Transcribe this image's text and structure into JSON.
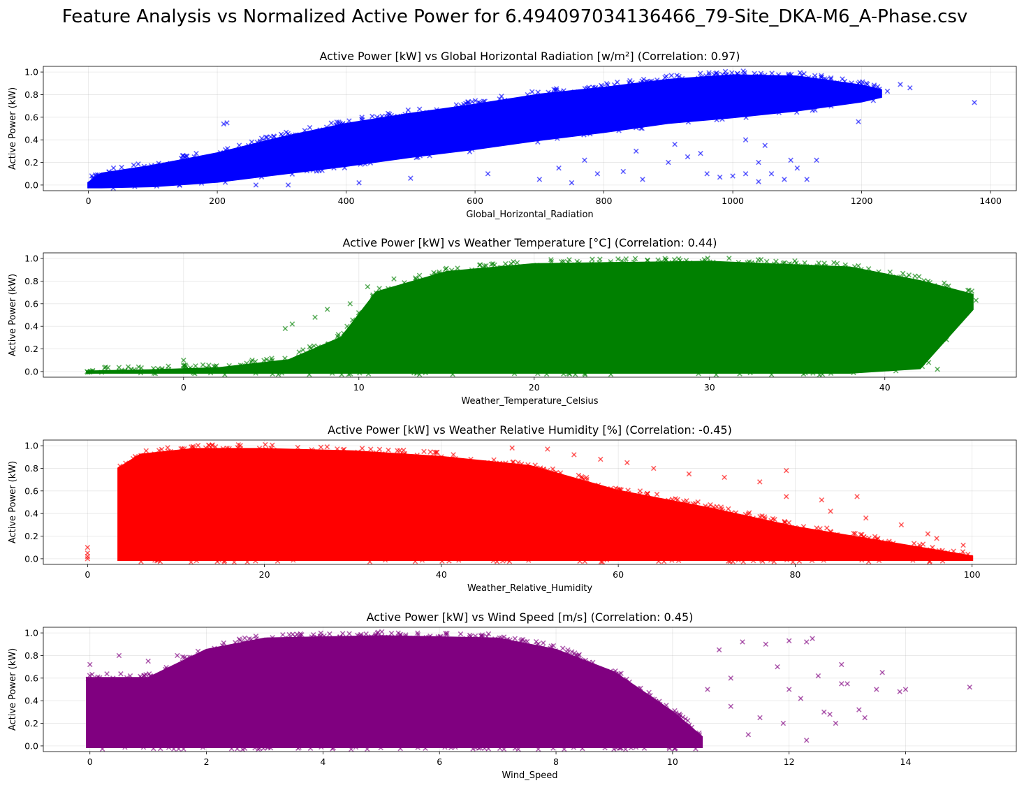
{
  "figure_title": "Feature Analysis vs Normalized Active Power for 6.494097034136466_79-Site_DKA-M6_A-Phase.csv",
  "chart_data": [
    {
      "type": "scatter",
      "title": "Active Power [kW] vs Global Horizontal Radiation [w/m²] (Correlation: 0.97)",
      "xlabel": "Global_Horizontal_Radiation",
      "ylabel": "Active Power (kW)",
      "color": "#0000ff",
      "marker": "x",
      "alpha": 0.6,
      "grid": true,
      "xlim": [
        -70,
        1440
      ],
      "ylim": [
        -0.05,
        1.05
      ],
      "xticks": [
        0,
        200,
        400,
        600,
        800,
        1000,
        1200,
        1400
      ],
      "yticks": [
        0.0,
        0.2,
        0.4,
        0.6,
        0.8,
        1.0
      ],
      "xtick_labels": [
        "0",
        "200",
        "400",
        "600",
        "800",
        "1000",
        "1200",
        "1400"
      ],
      "ytick_labels": [
        "0.0",
        "0.2",
        "0.4",
        "0.6",
        "0.8",
        "1.0"
      ],
      "density_band": [
        {
          "x": 0,
          "lo": -0.02,
          "hi": 0.02
        },
        {
          "x": 20,
          "lo": -0.02,
          "hi": 0.1
        },
        {
          "x": 100,
          "lo": -0.01,
          "hi": 0.17
        },
        {
          "x": 200,
          "lo": 0.03,
          "hi": 0.28
        },
        {
          "x": 300,
          "lo": 0.1,
          "hi": 0.42
        },
        {
          "x": 400,
          "lo": 0.17,
          "hi": 0.54
        },
        {
          "x": 500,
          "lo": 0.25,
          "hi": 0.63
        },
        {
          "x": 600,
          "lo": 0.32,
          "hi": 0.71
        },
        {
          "x": 700,
          "lo": 0.4,
          "hi": 0.8
        },
        {
          "x": 800,
          "lo": 0.47,
          "hi": 0.86
        },
        {
          "x": 900,
          "lo": 0.55,
          "hi": 0.93
        },
        {
          "x": 1000,
          "lo": 0.6,
          "hi": 0.97
        },
        {
          "x": 1100,
          "lo": 0.66,
          "hi": 0.96
        },
        {
          "x": 1200,
          "lo": 0.74,
          "hi": 0.88
        },
        {
          "x": 1230,
          "lo": 0.78,
          "hi": 0.84
        }
      ],
      "points": [
        [
          210,
          0.54
        ],
        [
          215,
          0.55
        ],
        [
          1375,
          0.73
        ],
        [
          1275,
          0.86
        ],
        [
          1260,
          0.89
        ],
        [
          1240,
          0.83
        ],
        [
          1195,
          0.56
        ],
        [
          620,
          0.1
        ],
        [
          700,
          0.05
        ],
        [
          750,
          0.02
        ],
        [
          790,
          0.1
        ],
        [
          830,
          0.12
        ],
        [
          860,
          0.05
        ],
        [
          900,
          0.2
        ],
        [
          930,
          0.25
        ],
        [
          960,
          0.1
        ],
        [
          980,
          0.07
        ],
        [
          1000,
          0.08
        ],
        [
          1020,
          0.1
        ],
        [
          1040,
          0.2
        ],
        [
          1060,
          0.1
        ],
        [
          1080,
          0.05
        ],
        [
          1100,
          0.15
        ],
        [
          1115,
          0.05
        ],
        [
          1040,
          0.03
        ],
        [
          1090,
          0.22
        ],
        [
          500,
          0.06
        ],
        [
          420,
          0.02
        ],
        [
          310,
          0.0
        ],
        [
          260,
          0.0
        ],
        [
          730,
          0.15
        ],
        [
          770,
          0.22
        ],
        [
          850,
          0.3
        ],
        [
          910,
          0.36
        ],
        [
          950,
          0.28
        ],
        [
          1020,
          0.4
        ],
        [
          1050,
          0.35
        ],
        [
          1130,
          0.22
        ]
      ]
    },
    {
      "type": "scatter",
      "title": "Active Power [kW] vs Weather Temperature [°C] (Correlation: 0.44)",
      "xlabel": "Weather_Temperature_Celsius",
      "ylabel": "Active Power (kW)",
      "color": "#008000",
      "marker": "x",
      "alpha": 0.6,
      "grid": true,
      "xlim": [
        -8,
        47.5
      ],
      "ylim": [
        -0.05,
        1.05
      ],
      "xticks": [
        0,
        10,
        20,
        30,
        40
      ],
      "yticks": [
        0.0,
        0.2,
        0.4,
        0.6,
        0.8,
        1.0
      ],
      "xtick_labels": [
        "0",
        "10",
        "20",
        "30",
        "40"
      ],
      "ytick_labels": [
        "0.0",
        "0.2",
        "0.4",
        "0.6",
        "0.8",
        "1.0"
      ],
      "density_band": [
        {
          "x": -5.5,
          "lo": -0.01,
          "hi": 0.0
        },
        {
          "x": -2,
          "lo": -0.01,
          "hi": 0.01
        },
        {
          "x": 2,
          "lo": -0.01,
          "hi": 0.03
        },
        {
          "x": 6,
          "lo": -0.01,
          "hi": 0.1
        },
        {
          "x": 9,
          "lo": -0.01,
          "hi": 0.3
        },
        {
          "x": 11,
          "lo": -0.01,
          "hi": 0.7
        },
        {
          "x": 15,
          "lo": -0.01,
          "hi": 0.88
        },
        {
          "x": 20,
          "lo": -0.01,
          "hi": 0.95
        },
        {
          "x": 30,
          "lo": -0.01,
          "hi": 0.97
        },
        {
          "x": 38,
          "lo": -0.01,
          "hi": 0.92
        },
        {
          "x": 42,
          "lo": 0.03,
          "hi": 0.8
        },
        {
          "x": 45,
          "lo": 0.55,
          "hi": 0.68
        }
      ],
      "points": [
        [
          -5.5,
          0.0
        ],
        [
          -5.2,
          0.0
        ],
        [
          0,
          0.1
        ],
        [
          0,
          0.05
        ],
        [
          5.8,
          0.38
        ],
        [
          6.2,
          0.42
        ],
        [
          7.5,
          0.48
        ],
        [
          8.2,
          0.55
        ],
        [
          9.5,
          0.6
        ],
        [
          10.5,
          0.75
        ],
        [
          12,
          0.82
        ],
        [
          44.5,
          0.55
        ],
        [
          45.2,
          0.63
        ],
        [
          44.8,
          0.72
        ],
        [
          43.8,
          0.46
        ],
        [
          42.5,
          0.08
        ],
        [
          43,
          0.02
        ],
        [
          42,
          0.12
        ],
        [
          22,
          0.99
        ],
        [
          28,
          0.99
        ]
      ]
    },
    {
      "type": "scatter",
      "title": "Active Power [kW] vs Weather Relative Humidity [%] (Correlation: -0.45)",
      "xlabel": "Weather_Relative_Humidity",
      "ylabel": "Active Power (kW)",
      "color": "#ff0000",
      "marker": "x",
      "alpha": 0.6,
      "grid": true,
      "xlim": [
        -5,
        105
      ],
      "ylim": [
        -0.05,
        1.05
      ],
      "xticks": [
        0,
        20,
        40,
        60,
        80,
        100
      ],
      "yticks": [
        0.0,
        0.2,
        0.4,
        0.6,
        0.8,
        1.0
      ],
      "xtick_labels": [
        "0",
        "20",
        "40",
        "60",
        "80",
        "100"
      ],
      "ytick_labels": [
        "0.0",
        "0.2",
        "0.4",
        "0.6",
        "0.8",
        "1.0"
      ],
      "density_band": [
        {
          "x": 3.5,
          "lo": -0.01,
          "hi": 0.8
        },
        {
          "x": 6,
          "lo": -0.01,
          "hi": 0.92
        },
        {
          "x": 12,
          "lo": -0.01,
          "hi": 0.97
        },
        {
          "x": 20,
          "lo": -0.01,
          "hi": 0.97
        },
        {
          "x": 30,
          "lo": -0.01,
          "hi": 0.95
        },
        {
          "x": 40,
          "lo": -0.01,
          "hi": 0.9
        },
        {
          "x": 50,
          "lo": -0.01,
          "hi": 0.82
        },
        {
          "x": 60,
          "lo": -0.01,
          "hi": 0.6
        },
        {
          "x": 70,
          "lo": -0.01,
          "hi": 0.45
        },
        {
          "x": 80,
          "lo": -0.01,
          "hi": 0.28
        },
        {
          "x": 90,
          "lo": -0.01,
          "hi": 0.15
        },
        {
          "x": 100,
          "lo": -0.01,
          "hi": 0.02
        }
      ],
      "points": [
        [
          0,
          0.0
        ],
        [
          0,
          0.05
        ],
        [
          0,
          0.1
        ],
        [
          0,
          0.02
        ],
        [
          48,
          0.98
        ],
        [
          52,
          0.97
        ],
        [
          55,
          0.92
        ],
        [
          58,
          0.88
        ],
        [
          61,
          0.85
        ],
        [
          64,
          0.8
        ],
        [
          68,
          0.75
        ],
        [
          72,
          0.72
        ],
        [
          76,
          0.68
        ],
        [
          79,
          0.78
        ],
        [
          79,
          0.55
        ],
        [
          84,
          0.42
        ],
        [
          88,
          0.36
        ],
        [
          92,
          0.3
        ],
        [
          95,
          0.22
        ],
        [
          99,
          0.12
        ],
        [
          96,
          0.18
        ],
        [
          87,
          0.55
        ],
        [
          83,
          0.52
        ]
      ]
    },
    {
      "type": "scatter",
      "title": "Active Power [kW] vs Wind Speed [m/s] (Correlation: 0.45)",
      "xlabel": "Wind_Speed",
      "ylabel": "Active Power (kW)",
      "color": "#800080",
      "marker": "x",
      "alpha": 0.6,
      "grid": true,
      "xlim": [
        -0.8,
        15.9
      ],
      "ylim": [
        -0.05,
        1.05
      ],
      "xticks": [
        0,
        2,
        4,
        6,
        8,
        10,
        12,
        14
      ],
      "yticks": [
        0.0,
        0.2,
        0.4,
        0.6,
        0.8,
        1.0
      ],
      "xtick_labels": [
        "0",
        "2",
        "4",
        "6",
        "8",
        "10",
        "12",
        "14"
      ],
      "ytick_labels": [
        "0.0",
        "0.2",
        "0.4",
        "0.6",
        "0.8",
        "1.0"
      ],
      "density_band": [
        {
          "x": -0.05,
          "lo": -0.01,
          "hi": 0.6
        },
        {
          "x": 1,
          "lo": -0.01,
          "hi": 0.6
        },
        {
          "x": 2,
          "lo": -0.01,
          "hi": 0.85
        },
        {
          "x": 3,
          "lo": -0.01,
          "hi": 0.95
        },
        {
          "x": 5,
          "lo": -0.01,
          "hi": 0.97
        },
        {
          "x": 7,
          "lo": -0.01,
          "hi": 0.95
        },
        {
          "x": 8,
          "lo": -0.01,
          "hi": 0.85
        },
        {
          "x": 9,
          "lo": -0.01,
          "hi": 0.65
        },
        {
          "x": 10,
          "lo": -0.01,
          "hi": 0.3
        },
        {
          "x": 10.5,
          "lo": -0.01,
          "hi": 0.08
        }
      ],
      "points": [
        [
          15.1,
          0.52
        ],
        [
          14.0,
          0.5
        ],
        [
          13.9,
          0.48
        ],
        [
          13.6,
          0.65
        ],
        [
          13.5,
          0.5
        ],
        [
          13.2,
          0.32
        ],
        [
          13.3,
          0.25
        ],
        [
          12.9,
          0.72
        ],
        [
          12.9,
          0.55
        ],
        [
          12.4,
          0.95
        ],
        [
          12.3,
          0.92
        ],
        [
          12.0,
          0.93
        ],
        [
          11.9,
          0.2
        ],
        [
          11.6,
          0.9
        ],
        [
          11.2,
          0.92
        ],
        [
          11.0,
          0.6
        ],
        [
          12.6,
          0.3
        ],
        [
          12.5,
          0.62
        ],
        [
          12.0,
          0.5
        ],
        [
          11.5,
          0.25
        ],
        [
          11.8,
          0.7
        ],
        [
          12.2,
          0.42
        ],
        [
          12.8,
          0.2
        ],
        [
          11.3,
          0.1
        ],
        [
          11.0,
          0.35
        ],
        [
          10.8,
          0.85
        ],
        [
          10.6,
          0.5
        ],
        [
          13.0,
          0.55
        ],
        [
          12.7,
          0.28
        ],
        [
          12.3,
          0.05
        ],
        [
          0.5,
          0.8
        ],
        [
          1.0,
          0.75
        ],
        [
          1.5,
          0.8
        ],
        [
          0,
          0.72
        ]
      ]
    }
  ]
}
